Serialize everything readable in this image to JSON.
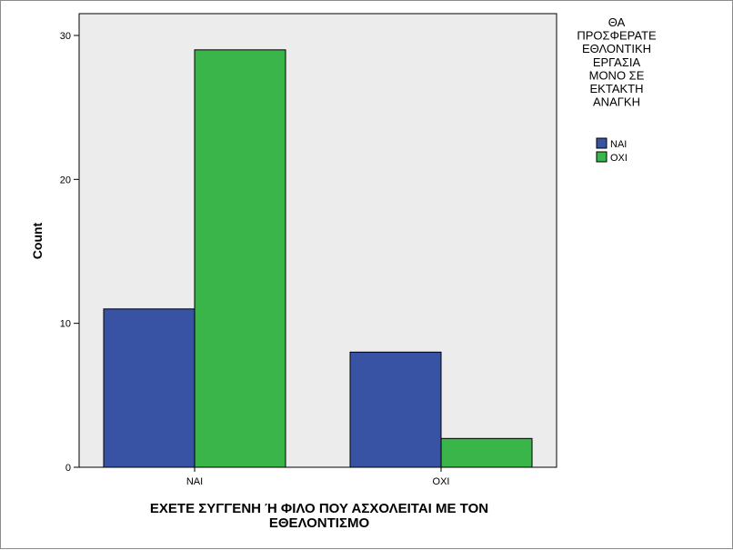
{
  "chart_data": {
    "type": "bar",
    "categories": [
      "ΝΑΙ",
      "ΟΧΙ"
    ],
    "series": [
      {
        "name": "ΝΑΙ",
        "values": [
          11,
          8
        ],
        "color": "#3953a4"
      },
      {
        "name": "ΟΧΙ",
        "values": [
          29,
          2
        ],
        "color": "#39b54a"
      }
    ],
    "title": "",
    "xlabel_lines": [
      "ΕΧΕΤΕ ΣΥΓΓΕΝΗ  Ή  ΦΙΛΟ  ΠΟΥ ΑΣΧΟΛΕΙΤΑΙ ΜΕ ΤΟΝ",
      "ΕΘΕΛΟΝΤΙΣΜΟ"
    ],
    "ylabel": "Count",
    "ylim": [
      0,
      30
    ],
    "yticks": [
      0,
      10,
      20,
      30
    ],
    "legend": {
      "title_lines": [
        "ΘΑ",
        "ΠΡΟΣΦΕΡΑΤΕ",
        "ΕΘΛΟΝΤΙΚΗ",
        "ΕΡΓΑΣΙΑ",
        "ΜΟΝΟ ΣΕ",
        "ΕΚΤΑΚΤΗ",
        "ΑΝΑΓΚΗ"
      ],
      "placement": "top-right, outside plot"
    },
    "plot_background": "#ececec",
    "grid": false
  }
}
